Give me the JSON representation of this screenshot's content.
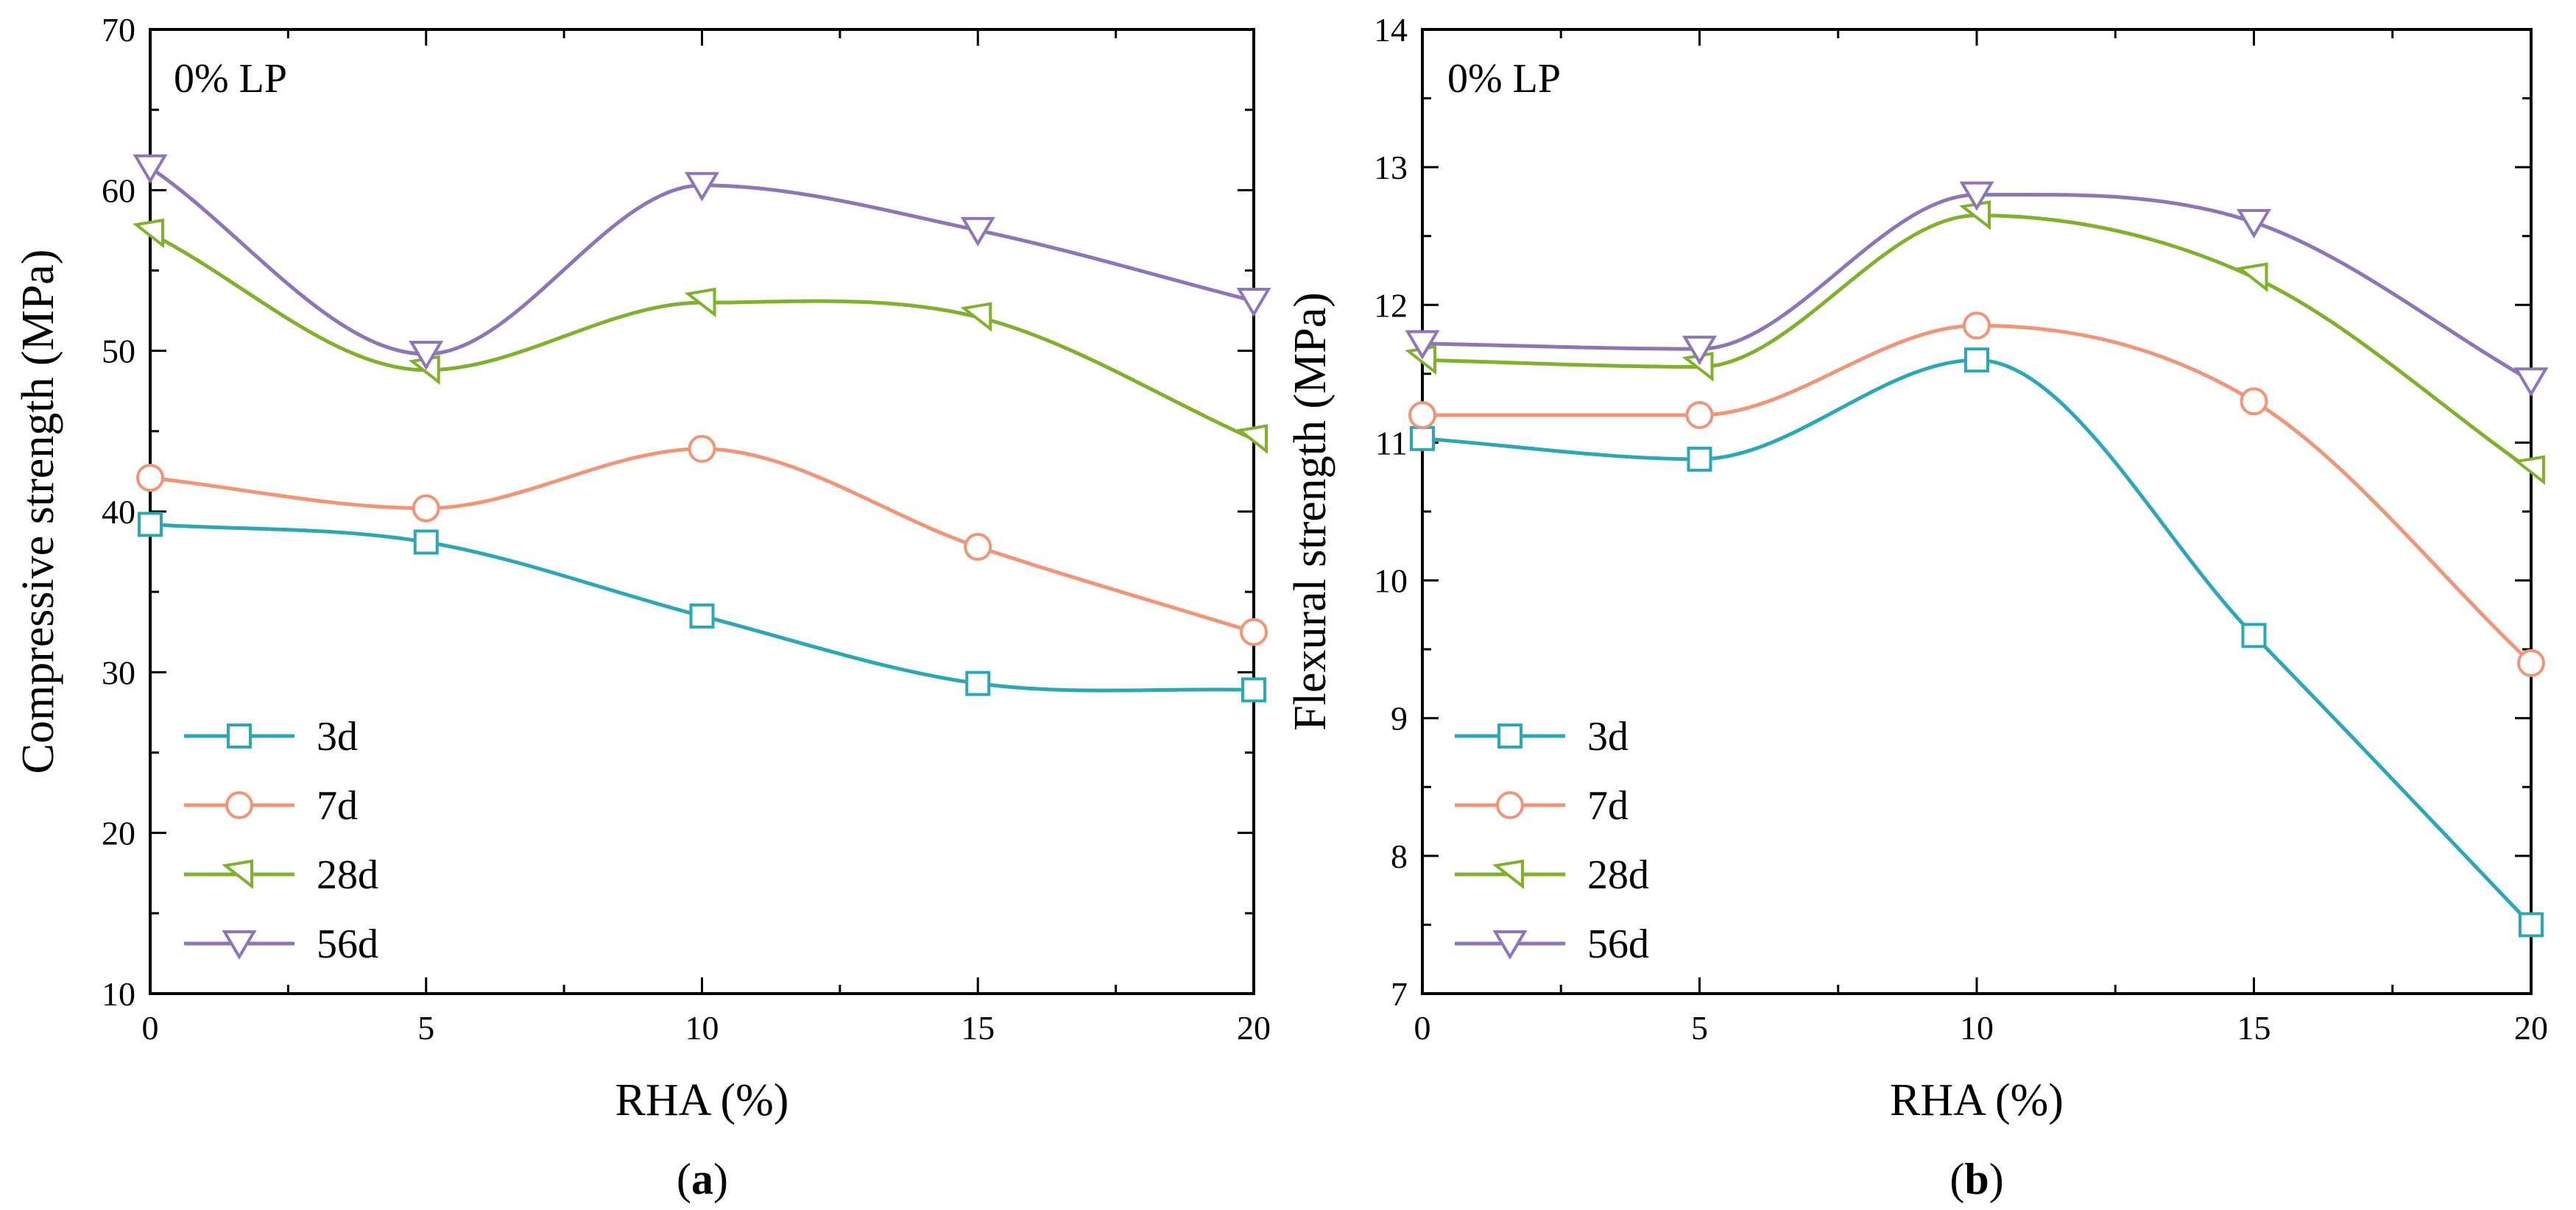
{
  "chart_data": [
    {
      "type": "line",
      "panel": "a",
      "panel_label": "a",
      "annotation": "0% LP",
      "xlabel": "RHA (%)",
      "ylabel": "Compressive strength (MPa)",
      "xlim": [
        0,
        20
      ],
      "ylim": [
        10,
        70
      ],
      "xticks": [
        0,
        5,
        10,
        15,
        20
      ],
      "yticks": [
        10,
        20,
        30,
        40,
        50,
        60,
        70
      ],
      "x": [
        0,
        5,
        10,
        15,
        20
      ],
      "legend_position": "lower-left",
      "series": [
        {
          "name": "3d",
          "marker": "square",
          "color": "#2aa8b8",
          "values": [
            39.2,
            38.1,
            33.5,
            29.3,
            28.9
          ]
        },
        {
          "name": "7d",
          "marker": "circle",
          "color": "#f29475",
          "values": [
            42.1,
            40.2,
            43.9,
            37.8,
            32.5
          ]
        },
        {
          "name": "28d",
          "marker": "tri-right",
          "color": "#7fb22a",
          "values": [
            57.3,
            48.8,
            53.0,
            52.1,
            44.5
          ]
        },
        {
          "name": "56d",
          "marker": "tri-down",
          "color": "#8e74b9",
          "values": [
            61.4,
            49.8,
            60.3,
            57.5,
            53.1
          ]
        }
      ]
    },
    {
      "type": "line",
      "panel": "b",
      "panel_label": "b",
      "annotation": "0% LP",
      "xlabel": "RHA (%)",
      "ylabel": "Flexural strength (MPa)",
      "xlim": [
        0,
        20
      ],
      "ylim": [
        7,
        14
      ],
      "xticks": [
        0,
        5,
        10,
        15,
        20
      ],
      "yticks": [
        7,
        8,
        9,
        10,
        11,
        12,
        13,
        14
      ],
      "x": [
        0,
        5,
        10,
        15,
        20
      ],
      "legend_position": "lower-left",
      "series": [
        {
          "name": "3d",
          "marker": "square",
          "color": "#2aa8b8",
          "values": [
            11.03,
            10.88,
            11.6,
            9.6,
            7.5
          ]
        },
        {
          "name": "7d",
          "marker": "circle",
          "color": "#f29475",
          "values": [
            11.2,
            11.2,
            11.85,
            11.3,
            9.4
          ]
        },
        {
          "name": "28d",
          "marker": "tri-right",
          "color": "#7fb22a",
          "values": [
            11.6,
            11.55,
            12.65,
            12.2,
            10.8
          ]
        },
        {
          "name": "56d",
          "marker": "tri-down",
          "color": "#8e74b9",
          "values": [
            11.72,
            11.68,
            12.8,
            12.6,
            11.45
          ]
        }
      ]
    }
  ]
}
